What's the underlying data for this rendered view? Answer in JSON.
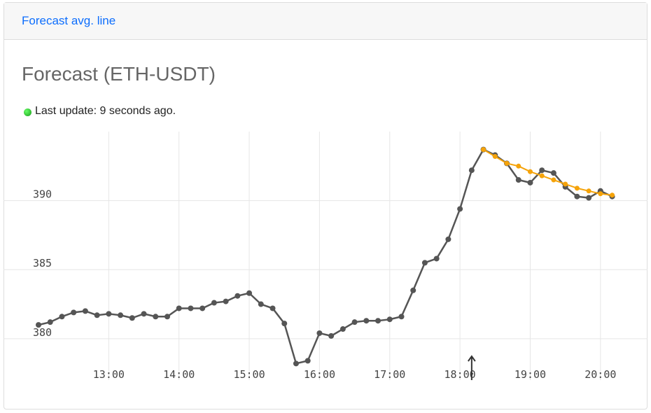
{
  "header": {
    "tab": "Forecast avg. line"
  },
  "card": {
    "title": "Forecast (ETH-USDT)",
    "status": "Last update: 9 seconds ago."
  },
  "chart_data": {
    "type": "line",
    "xlim": [
      "12:00",
      "20:30"
    ],
    "xticks": [
      "13:00",
      "14:00",
      "15:00",
      "16:00",
      "17:00",
      "18:00",
      "19:00",
      "20:00"
    ],
    "ylim": [
      377,
      395
    ],
    "yticks": [
      380,
      385,
      390
    ],
    "grid": true,
    "marker": "18:10",
    "series": [
      {
        "color": "#555555",
        "x": [
          "12:00",
          "12:10",
          "12:20",
          "12:30",
          "12:40",
          "12:50",
          "13:00",
          "13:10",
          "13:20",
          "13:30",
          "13:40",
          "13:50",
          "14:00",
          "14:10",
          "14:20",
          "14:30",
          "14:40",
          "14:50",
          "15:00",
          "15:10",
          "15:20",
          "15:30",
          "15:40",
          "15:50",
          "16:00",
          "16:10",
          "16:20",
          "16:30",
          "16:40",
          "16:50",
          "17:00",
          "17:10",
          "17:20",
          "17:30",
          "17:40",
          "17:50",
          "18:00",
          "18:10",
          "18:20",
          "18:30",
          "18:40",
          "18:50",
          "19:00",
          "19:10",
          "19:20",
          "19:30",
          "19:40",
          "19:50",
          "20:00",
          "20:10"
        ],
        "values": [
          381.0,
          381.2,
          381.6,
          381.9,
          382.0,
          381.7,
          381.8,
          381.7,
          381.5,
          381.8,
          381.6,
          381.6,
          382.2,
          382.2,
          382.2,
          382.6,
          382.7,
          383.1,
          383.3,
          382.5,
          382.2,
          381.1,
          378.2,
          378.4,
          380.4,
          380.2,
          380.7,
          381.2,
          381.3,
          381.3,
          381.4,
          381.6,
          383.5,
          385.5,
          385.8,
          387.2,
          389.4,
          392.2,
          393.7,
          393.3,
          392.7,
          391.5,
          391.3,
          392.2,
          392.0,
          391.0,
          390.3,
          390.2,
          390.7,
          390.3
        ]
      },
      {
        "color": "#f5a30a",
        "x": [
          "18:20",
          "18:30",
          "18:40",
          "18:50",
          "19:00",
          "19:10",
          "19:20",
          "19:30",
          "19:40",
          "19:50",
          "20:00",
          "20:10"
        ],
        "values": [
          393.7,
          393.2,
          392.7,
          392.5,
          392.1,
          391.8,
          391.5,
          391.2,
          390.9,
          390.7,
          390.5,
          390.4
        ]
      }
    ]
  }
}
